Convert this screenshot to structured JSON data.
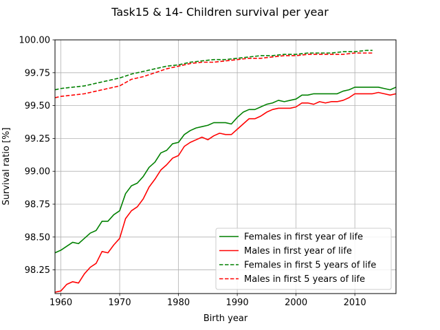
{
  "chart_data": {
    "type": "line",
    "title": "Task15 & 14- Children survival per year",
    "xlabel": "Birth year",
    "ylabel": "Survival ratio [%]",
    "xlim": [
      1959,
      2017
    ],
    "ylim": [
      98.07,
      100.0
    ],
    "xticks": [
      1960,
      1970,
      1980,
      1990,
      2000,
      2010
    ],
    "yticks": [
      98.25,
      98.5,
      98.75,
      99.0,
      99.25,
      99.5,
      99.75,
      100.0
    ],
    "xtick_labels": [
      "1960",
      "1970",
      "1980",
      "1990",
      "2000",
      "2010"
    ],
    "ytick_labels": [
      "98.25",
      "98.50",
      "98.75",
      "99.00",
      "99.25",
      "99.50",
      "99.75",
      "100.00"
    ],
    "grid": true,
    "legend_position": "lower right",
    "series": [
      {
        "name": "Females in first year of life",
        "color": "#008000",
        "style": "solid",
        "x": [
          1959,
          1960,
          1961,
          1962,
          1963,
          1964,
          1965,
          1966,
          1967,
          1968,
          1969,
          1970,
          1971,
          1972,
          1973,
          1974,
          1975,
          1976,
          1977,
          1978,
          1979,
          1980,
          1981,
          1982,
          1983,
          1984,
          1985,
          1986,
          1987,
          1988,
          1989,
          1990,
          1991,
          1992,
          1993,
          1994,
          1995,
          1996,
          1997,
          1998,
          1999,
          2000,
          2001,
          2002,
          2003,
          2004,
          2005,
          2006,
          2007,
          2008,
          2009,
          2010,
          2011,
          2012,
          2013,
          2014,
          2015,
          2016,
          2017
        ],
        "y": [
          98.38,
          98.4,
          98.43,
          98.46,
          98.45,
          98.49,
          98.53,
          98.55,
          98.62,
          98.62,
          98.67,
          98.7,
          98.83,
          98.89,
          98.91,
          98.96,
          99.03,
          99.07,
          99.14,
          99.16,
          99.21,
          99.22,
          99.28,
          99.31,
          99.33,
          99.34,
          99.35,
          99.37,
          99.37,
          99.37,
          99.36,
          99.41,
          99.45,
          99.47,
          99.47,
          99.49,
          99.51,
          99.52,
          99.54,
          99.53,
          99.54,
          99.55,
          99.58,
          99.58,
          99.59,
          99.59,
          99.59,
          99.59,
          99.59,
          99.61,
          99.62,
          99.64,
          99.64,
          99.64,
          99.64,
          99.64,
          99.63,
          99.62,
          99.64
        ]
      },
      {
        "name": "Males in first year of life",
        "color": "#ff0000",
        "style": "solid",
        "x": [
          1959,
          1960,
          1961,
          1962,
          1963,
          1964,
          1965,
          1966,
          1967,
          1968,
          1969,
          1970,
          1971,
          1972,
          1973,
          1974,
          1975,
          1976,
          1977,
          1978,
          1979,
          1980,
          1981,
          1982,
          1983,
          1984,
          1985,
          1986,
          1987,
          1988,
          1989,
          1990,
          1991,
          1992,
          1993,
          1994,
          1995,
          1996,
          1997,
          1998,
          1999,
          2000,
          2001,
          2002,
          2003,
          2004,
          2005,
          2006,
          2007,
          2008,
          2009,
          2010,
          2011,
          2012,
          2013,
          2014,
          2015,
          2016,
          2017
        ],
        "y": [
          98.08,
          98.09,
          98.14,
          98.16,
          98.15,
          98.22,
          98.27,
          98.3,
          98.39,
          98.38,
          98.44,
          98.49,
          98.64,
          98.7,
          98.73,
          98.79,
          98.88,
          98.94,
          99.01,
          99.05,
          99.1,
          99.12,
          99.19,
          99.22,
          99.24,
          99.26,
          99.24,
          99.27,
          99.29,
          99.28,
          99.28,
          99.32,
          99.36,
          99.4,
          99.4,
          99.42,
          99.45,
          99.47,
          99.48,
          99.48,
          99.48,
          99.49,
          99.52,
          99.52,
          99.51,
          99.53,
          99.52,
          99.53,
          99.53,
          99.54,
          99.56,
          99.59,
          99.59,
          99.59,
          99.59,
          99.6,
          99.59,
          99.58,
          99.59
        ]
      },
      {
        "name": "Females in first 5 years of life",
        "color": "#008000",
        "style": "dashed",
        "x": [
          1959,
          1960,
          1962,
          1964,
          1966,
          1968,
          1970,
          1972,
          1974,
          1976,
          1978,
          1980,
          1982,
          1984,
          1986,
          1988,
          1990,
          1992,
          1994,
          1996,
          1998,
          2000,
          2002,
          2004,
          2006,
          2008,
          2010,
          2012,
          2013
        ],
        "y": [
          99.62,
          99.63,
          99.64,
          99.65,
          99.67,
          99.69,
          99.71,
          99.74,
          99.76,
          99.78,
          99.8,
          99.81,
          99.83,
          99.84,
          99.85,
          99.85,
          99.86,
          99.87,
          99.88,
          99.88,
          99.89,
          99.89,
          99.9,
          99.9,
          99.9,
          99.91,
          99.91,
          99.92,
          99.92
        ]
      },
      {
        "name": "Males in first 5 years of life",
        "color": "#ff0000",
        "style": "dashed",
        "x": [
          1959,
          1960,
          1962,
          1964,
          1966,
          1968,
          1970,
          1972,
          1974,
          1976,
          1978,
          1980,
          1982,
          1984,
          1986,
          1988,
          1990,
          1992,
          1994,
          1996,
          1998,
          2000,
          2002,
          2004,
          2006,
          2008,
          2010,
          2012,
          2013
        ],
        "y": [
          99.56,
          99.57,
          99.58,
          99.59,
          99.61,
          99.63,
          99.65,
          99.7,
          99.72,
          99.75,
          99.78,
          99.8,
          99.82,
          99.83,
          99.83,
          99.84,
          99.85,
          99.86,
          99.86,
          99.87,
          99.88,
          99.88,
          99.89,
          99.89,
          99.89,
          99.89,
          99.9,
          99.9,
          99.9
        ]
      }
    ]
  }
}
